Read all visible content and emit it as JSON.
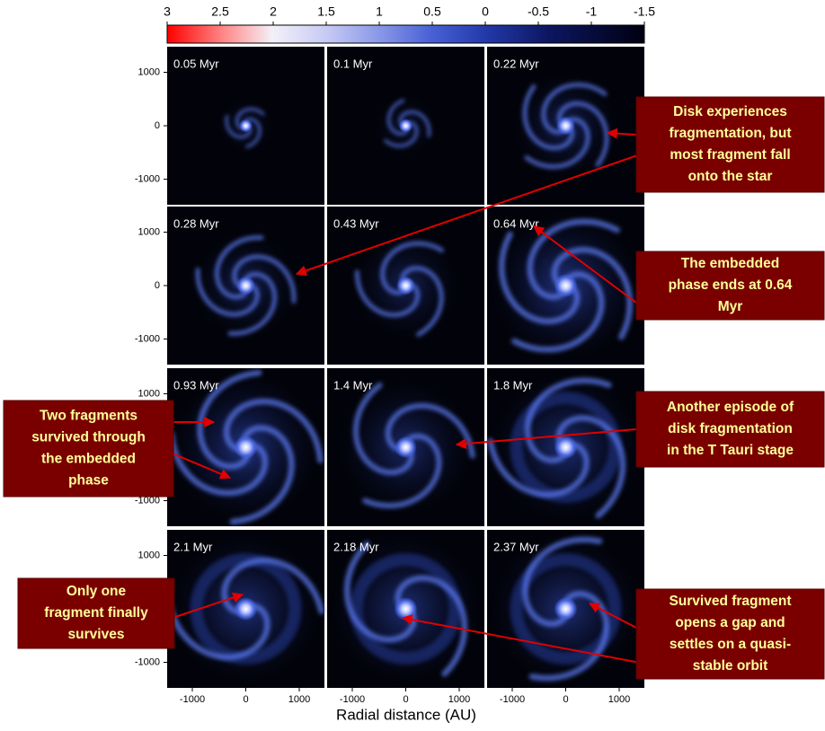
{
  "colorbar": {
    "ticks": [
      3,
      2.5,
      2,
      1.5,
      1,
      0.5,
      0,
      -0.5,
      -1,
      -1.5
    ]
  },
  "panels": [
    "0.05 Myr",
    "0.1 Myr",
    "0.22 Myr",
    "0.28 Myr",
    "0.43 Myr",
    "0.64 Myr",
    "0.93 Myr",
    "1.4 Myr",
    "1.8 Myr",
    "2.1 Myr",
    "2.18 Myr",
    "2.37 Myr"
  ],
  "y_ticks": [
    1000,
    0,
    -1000
  ],
  "x_ticks": [
    -1000,
    0,
    1000
  ],
  "x_label": "Radial distance (AU)",
  "annotations": [
    {
      "lines": [
        "Disk experiences",
        "fragmentation, but",
        "most fragment fall",
        "onto the star"
      ]
    },
    {
      "lines": [
        "The embedded",
        "phase ends at 0.64",
        "Myr"
      ]
    },
    {
      "lines": [
        "Two fragments",
        "survived through",
        "the embedded",
        "phase"
      ]
    },
    {
      "lines": [
        "Another episode of",
        "disk fragmentation",
        "in the T Tauri stage"
      ]
    },
    {
      "lines": [
        "Only one",
        "fragment finally",
        "survives"
      ]
    },
    {
      "lines": [
        "Survived fragment",
        "opens a gap and",
        "settles on a quasi-",
        "stable orbit"
      ]
    }
  ]
}
